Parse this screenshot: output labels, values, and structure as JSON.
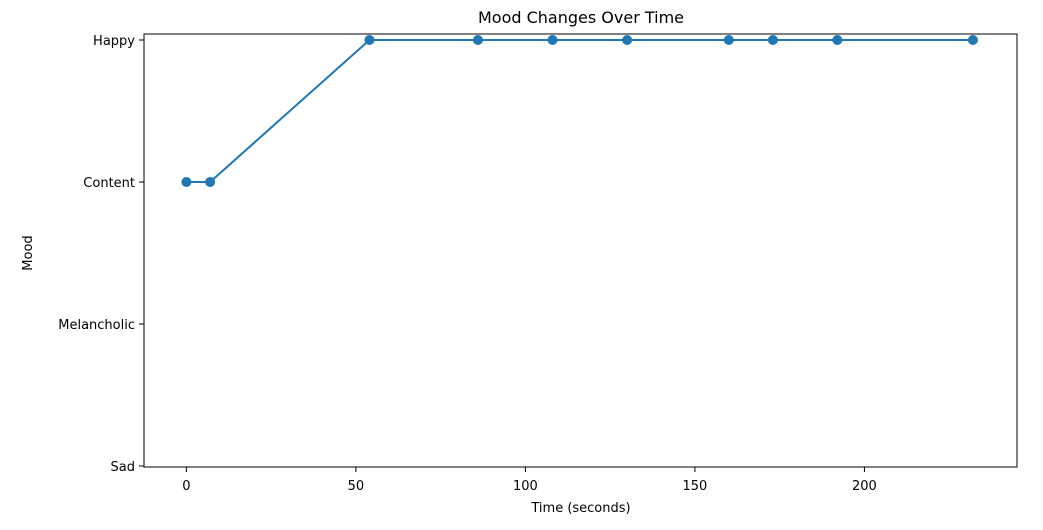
{
  "chart_data": {
    "type": "line",
    "title": "Mood Changes Over Time",
    "xlabel": "Time (seconds)",
    "ylabel": "Mood",
    "xlim": [
      -12.5,
      245
    ],
    "x_ticks": [
      0,
      50,
      100,
      150,
      200
    ],
    "y_categories": [
      "Sad",
      "Melancholic",
      "Content",
      "Happy"
    ],
    "grid": false,
    "color": "#1f77b4",
    "series": [
      {
        "x": [
          0,
          7,
          54,
          86,
          108,
          130,
          160,
          173,
          192,
          232
        ],
        "y": [
          "Content",
          "Content",
          "Happy",
          "Happy",
          "Happy",
          "Happy",
          "Happy",
          "Happy",
          "Happy",
          "Happy"
        ]
      }
    ]
  }
}
